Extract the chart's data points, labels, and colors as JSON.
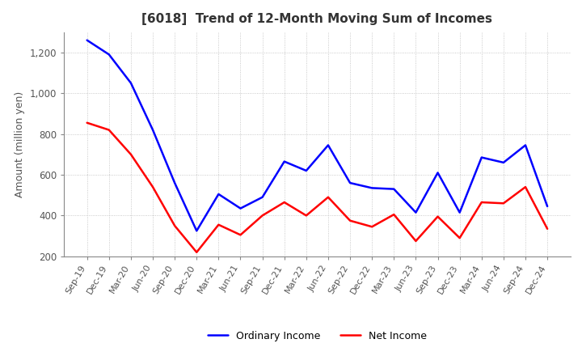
{
  "title": "[6018]  Trend of 12-Month Moving Sum of Incomes",
  "ylabel": "Amount (million yen)",
  "xlabels": [
    "Sep-19",
    "Dec-19",
    "Mar-20",
    "Jun-20",
    "Sep-20",
    "Dec-20",
    "Mar-21",
    "Jun-21",
    "Sep-21",
    "Dec-21",
    "Mar-22",
    "Jun-22",
    "Sep-22",
    "Dec-22",
    "Mar-23",
    "Jun-23",
    "Sep-23",
    "Dec-23",
    "Mar-24",
    "Jun-24",
    "Sep-24",
    "Dec-24"
  ],
  "ordinary_income": [
    1260,
    1190,
    1050,
    820,
    560,
    325,
    505,
    435,
    490,
    665,
    620,
    745,
    560,
    535,
    530,
    415,
    610,
    415,
    685,
    660,
    745,
    445
  ],
  "net_income": [
    855,
    820,
    700,
    540,
    350,
    220,
    355,
    305,
    400,
    465,
    400,
    490,
    375,
    345,
    405,
    275,
    395,
    290,
    465,
    460,
    540,
    335
  ],
  "ordinary_income_color": "#0000FF",
  "net_income_color": "#FF0000",
  "ylim": [
    200,
    1300
  ],
  "yticks": [
    200,
    400,
    600,
    800,
    1000,
    1200
  ],
  "ytick_labels": [
    "200",
    "400",
    "600",
    "800",
    "1,000",
    "1,200"
  ],
  "background_color": "#FFFFFF",
  "grid_color": "#BBBBBB",
  "line_width": 1.8,
  "title_color": "#333333",
  "tick_color": "#555555"
}
